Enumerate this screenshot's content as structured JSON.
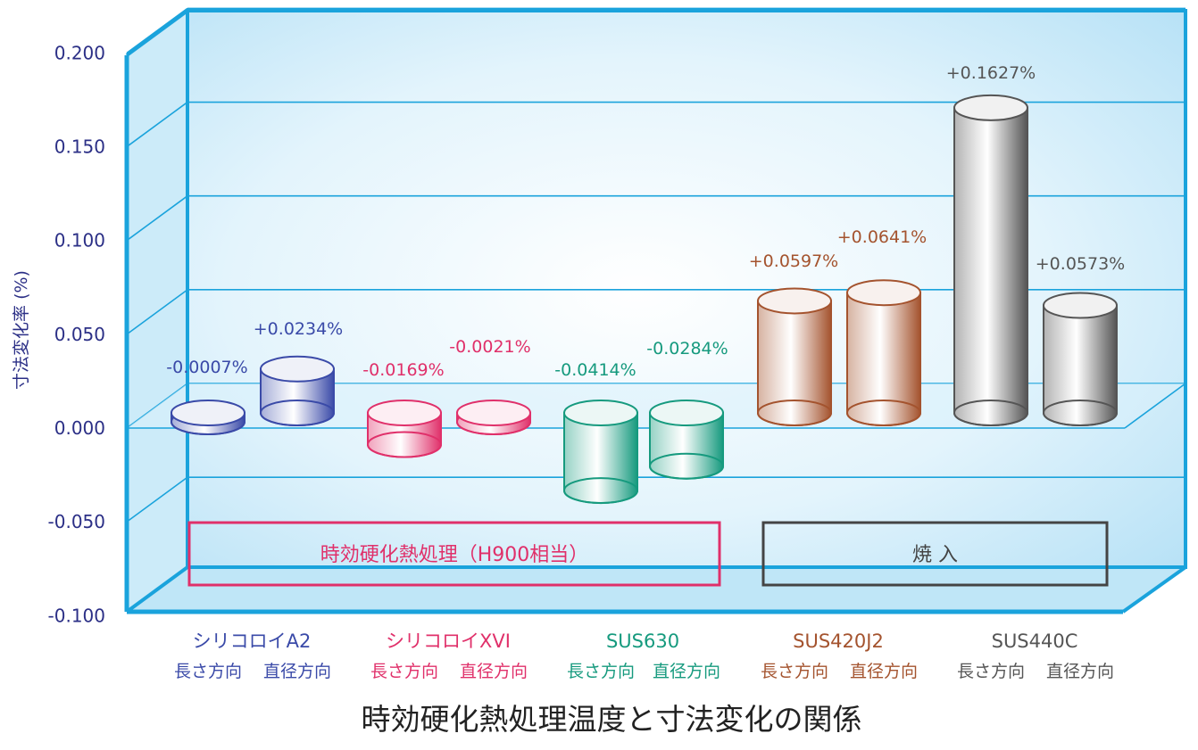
{
  "chart_data": {
    "type": "bar",
    "style": "3d-cylinder",
    "title": "時効硬化熱処理温度と寸法変化の関係",
    "ylabel": "寸法変化率 (%)",
    "ylim": [
      -0.1,
      0.2
    ],
    "yticks": [
      "0.200",
      "0.150",
      "0.100",
      "0.050",
      "0.000",
      "-0.050",
      "-0.100"
    ],
    "grid": true,
    "groups": [
      {
        "name": "シリコロイA2",
        "color": "#3a4aa8",
        "categories": [
          "長さ方向",
          "直径方向"
        ],
        "values": [
          -0.0007,
          0.0234
        ],
        "labels": [
          "-0.0007%",
          "+0.0234%"
        ]
      },
      {
        "name": "シリコロイXVI",
        "color": "#e0306a",
        "categories": [
          "長さ方向",
          "直径方向"
        ],
        "values": [
          -0.0169,
          -0.0021
        ],
        "labels": [
          "-0.0169%",
          "-0.0021%"
        ]
      },
      {
        "name": "SUS630",
        "color": "#169a7e",
        "categories": [
          "長さ方向",
          "直径方向"
        ],
        "values": [
          -0.0414,
          -0.0284
        ],
        "labels": [
          "-0.0414%",
          "-0.0284%"
        ]
      },
      {
        "name": "SUS420J2",
        "color": "#a4532e",
        "categories": [
          "長さ方向",
          "直径方向"
        ],
        "values": [
          0.0597,
          0.0641
        ],
        "labels": [
          "+0.0597%",
          "+0.0641%"
        ]
      },
      {
        "name": "SUS440C",
        "color": "#555555",
        "categories": [
          "長さ方向",
          "直径方向"
        ],
        "values": [
          0.1627,
          0.0573
        ],
        "labels": [
          "+0.1627%",
          "+0.0573%"
        ]
      }
    ],
    "annotations": [
      {
        "text": "時効硬化熱処理（H900相当）",
        "color": "#e0306a"
      },
      {
        "text": "焼 入",
        "color": "#444444"
      }
    ]
  }
}
